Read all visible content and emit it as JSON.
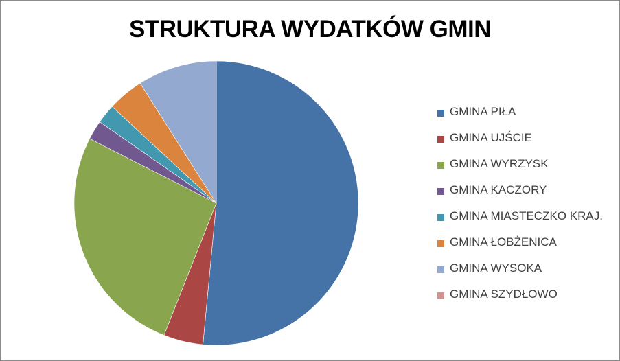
{
  "chart_data": {
    "type": "pie",
    "title": "STRUKTURA WYDATKÓW GMIN",
    "legend_position": "right",
    "start_angle_deg": 0,
    "direction": "clockwise",
    "slices": [
      {
        "name": "GMINA PIŁA",
        "value": 51.5,
        "color": "#4572A7"
      },
      {
        "name": "GMINA UJŚCIE",
        "value": 4.5,
        "color": "#AA4643"
      },
      {
        "name": "GMINA WYRZYSK",
        "value": 26.5,
        "color": "#89A54E"
      },
      {
        "name": "GMINA KACZORY",
        "value": 2.2,
        "color": "#71588F"
      },
      {
        "name": "GMINA MIASTECZKO KRAJ.",
        "value": 2.2,
        "color": "#4198AF"
      },
      {
        "name": "GMINA ŁOBŻENICA",
        "value": 4.1,
        "color": "#DB843D"
      },
      {
        "name": "GMINA WYSOKA",
        "value": 9.0,
        "color": "#93A9CF"
      },
      {
        "name": "GMINA SZYDŁOWO",
        "value": 0,
        "color": "#D19392"
      }
    ]
  }
}
